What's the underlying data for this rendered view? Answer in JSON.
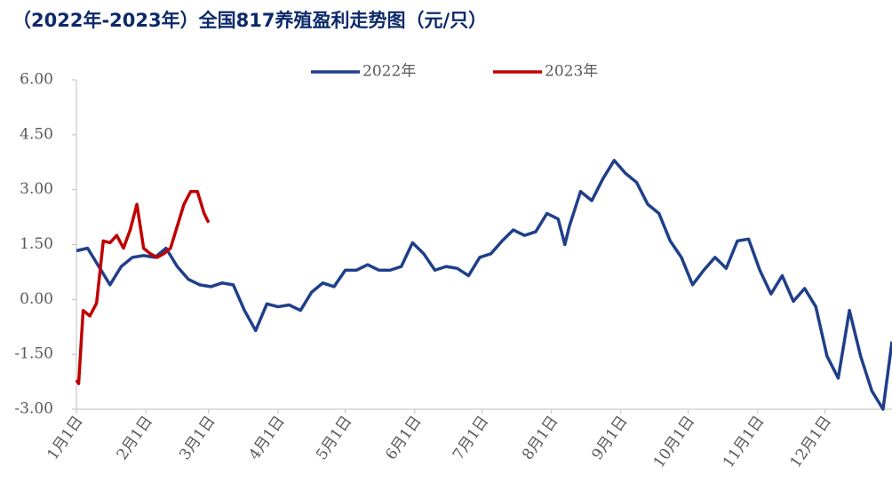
{
  "chart_data": {
    "type": "line",
    "title": "（2022年-2023年）全国817养殖盈利走势图（元/只）",
    "xlim": [
      0,
      364
    ],
    "xticks": [
      {
        "value": 0,
        "label": "1月1日"
      },
      {
        "value": 31,
        "label": "2月1日"
      },
      {
        "value": 59,
        "label": "3月1日"
      },
      {
        "value": 90,
        "label": "4月1日"
      },
      {
        "value": 120,
        "label": "5月1日"
      },
      {
        "value": 151,
        "label": "6月1日"
      },
      {
        "value": 181,
        "label": "7月1日"
      },
      {
        "value": 212,
        "label": "8月1日"
      },
      {
        "value": 243,
        "label": "9月1日"
      },
      {
        "value": 273,
        "label": "10月1日"
      },
      {
        "value": 304,
        "label": "11月1日"
      },
      {
        "value": 334,
        "label": "12月1日"
      }
    ],
    "ylim": [
      -3,
      6
    ],
    "yticks": [
      {
        "value": 6,
        "label": "6.00"
      },
      {
        "value": 4.5,
        "label": "4.50"
      },
      {
        "value": 3,
        "label": "3.00"
      },
      {
        "value": 1.5,
        "label": "1.50"
      },
      {
        "value": 0,
        "label": "0.00"
      },
      {
        "value": -1.5,
        "label": "-1.50"
      },
      {
        "value": -3,
        "label": "-3.00"
      }
    ],
    "series": [
      {
        "name": "2022年",
        "color": "#1f3f8a",
        "x": [
          0,
          5,
          10,
          15,
          20,
          25,
          30,
          35,
          40,
          45,
          50,
          55,
          60,
          65,
          70,
          75,
          80,
          85,
          90,
          95,
          100,
          105,
          110,
          115,
          120,
          125,
          130,
          135,
          140,
          145,
          150,
          155,
          160,
          165,
          170,
          175,
          180,
          185,
          190,
          195,
          200,
          205,
          210,
          215,
          218,
          220,
          225,
          230,
          235,
          240,
          245,
          250,
          255,
          260,
          265,
          270,
          275,
          280,
          285,
          290,
          295,
          300,
          305,
          310,
          315,
          320,
          325,
          330,
          335,
          340,
          345,
          350,
          355,
          360,
          364
        ],
        "values": [
          1.33,
          1.4,
          0.9,
          0.4,
          0.9,
          1.15,
          1.2,
          1.15,
          1.4,
          0.9,
          0.55,
          0.4,
          0.35,
          0.45,
          0.4,
          -0.3,
          -0.85,
          -0.12,
          -0.2,
          -0.15,
          -0.3,
          0.2,
          0.45,
          0.35,
          0.8,
          0.8,
          0.95,
          0.8,
          0.8,
          0.9,
          1.55,
          1.25,
          0.8,
          0.9,
          0.85,
          0.65,
          1.15,
          1.25,
          1.6,
          1.9,
          1.75,
          1.85,
          2.35,
          2.2,
          1.5,
          2.0,
          2.95,
          2.7,
          3.3,
          3.8,
          3.45,
          3.2,
          2.6,
          2.35,
          1.6,
          1.15,
          0.4,
          0.8,
          1.15,
          0.85,
          1.6,
          1.65,
          0.8,
          0.15,
          0.65,
          -0.05,
          0.3,
          -0.2,
          -1.55,
          -2.15,
          -0.3,
          -1.55,
          -2.5,
          -3.0,
          -1.15
        ]
      },
      {
        "name": "2023年",
        "color": "#c00000",
        "x": [
          0,
          1,
          3,
          6,
          9,
          12,
          15,
          18,
          21,
          24,
          27,
          30,
          33,
          36,
          39,
          42,
          45,
          48,
          51,
          54,
          57,
          59
        ],
        "values": [
          -2.2,
          -2.3,
          -0.3,
          -0.45,
          -0.1,
          1.6,
          1.55,
          1.75,
          1.4,
          1.9,
          2.6,
          1.4,
          1.25,
          1.15,
          1.25,
          1.4,
          2.0,
          2.6,
          2.95,
          2.95,
          2.35,
          2.1
        ]
      }
    ]
  }
}
